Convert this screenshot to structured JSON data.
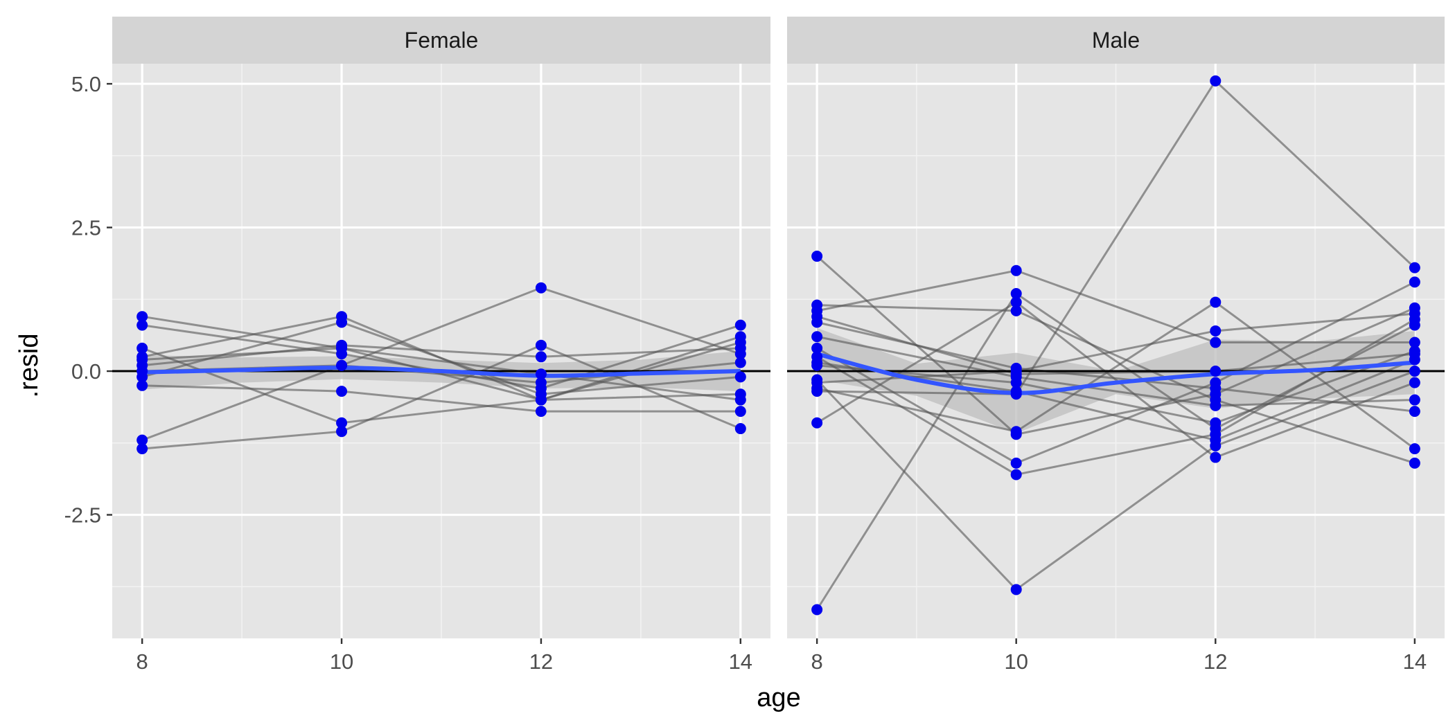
{
  "chart_data": {
    "type": "scatter",
    "title": "",
    "xlabel": "age",
    "ylabel": ".resid",
    "x_ticks": [
      8,
      10,
      12,
      14
    ],
    "y_ticks": [
      -2.5,
      0.0,
      2.5,
      5.0
    ],
    "y_tick_labels": [
      "-2.5",
      "0.0",
      "2.5",
      "5.0"
    ],
    "xlim": [
      7.7,
      14.3
    ],
    "ylim": [
      -4.65,
      5.35
    ],
    "reference_line_y": 0,
    "grid": true,
    "colors": {
      "points": "#0000ee",
      "smooth_line": "#3355ff",
      "subject_lines": "#555555",
      "band": "#bdbdbd",
      "panel_bg": "#e5e5e5",
      "strip_bg": "#d4d4d4"
    },
    "panels": [
      {
        "strip_label": "Female",
        "subjects": [
          [
            0.95,
            0.4,
            -0.5,
            -0.4
          ],
          [
            0.8,
            0.3,
            -0.3,
            0.8
          ],
          [
            0.4,
            -0.9,
            -0.5,
            0.6
          ],
          [
            0.25,
            0.95,
            -0.5,
            0.5
          ],
          [
            0.1,
            0.45,
            0.25,
            0.4
          ],
          [
            0.0,
            0.1,
            -0.2,
            0.15
          ],
          [
            -0.1,
            0.85,
            -0.4,
            -0.1
          ],
          [
            -0.25,
            -0.35,
            -0.7,
            -0.7
          ],
          [
            -1.2,
            0.1,
            1.45,
            0.3
          ],
          [
            -1.35,
            -1.05,
            0.45,
            -1.0
          ],
          [
            0.2,
            0.4,
            -0.05,
            -0.5
          ]
        ],
        "smooth": [
          [
            8,
            -0.02
          ],
          [
            9,
            0.02
          ],
          [
            10,
            0.06
          ],
          [
            11,
            0.0
          ],
          [
            12,
            -0.08
          ],
          [
            13,
            -0.04
          ],
          [
            14,
            0.0
          ]
        ],
        "band_halfwidth": [
          0.3,
          0.22,
          0.2,
          0.2,
          0.22,
          0.24,
          0.35
        ]
      },
      {
        "strip_label": "Male",
        "subjects": [
          [
            2.0,
            -1.1,
            -0.4,
            1.1
          ],
          [
            1.15,
            1.05,
            -0.5,
            -1.6
          ],
          [
            1.05,
            1.75,
            0.5,
            0.5
          ],
          [
            0.95,
            -0.05,
            0.0,
            0.3
          ],
          [
            0.85,
            0.05,
            -0.3,
            -0.7
          ],
          [
            0.6,
            -0.1,
            -0.6,
            -0.5
          ],
          [
            0.4,
            -1.6,
            -0.2,
            1.55
          ],
          [
            0.25,
            -1.8,
            -1.1,
            0.9
          ],
          [
            -0.15,
            -3.8,
            -1.3,
            0.0
          ],
          [
            -0.35,
            -0.4,
            5.05,
            1.8
          ],
          [
            -0.9,
            1.2,
            -1.5,
            -0.2
          ],
          [
            -4.15,
            1.35,
            -1.0,
            0.8
          ],
          [
            -0.3,
            -1.05,
            1.2,
            -1.35
          ],
          [
            0.1,
            -0.2,
            -0.9,
            0.35
          ],
          [
            -0.2,
            0.0,
            0.7,
            1.0
          ],
          [
            0.15,
            -0.35,
            -1.2,
            0.2
          ]
        ],
        "smooth": [
          [
            8,
            0.3
          ],
          [
            9,
            -0.15
          ],
          [
            10,
            -0.38
          ],
          [
            11,
            -0.2
          ],
          [
            12,
            -0.05
          ],
          [
            13,
            0.02
          ],
          [
            14,
            0.15
          ]
        ],
        "band_halfwidth": [
          0.45,
          0.28,
          0.7,
          0.2,
          0.6,
          0.5,
          0.55
        ]
      }
    ]
  }
}
